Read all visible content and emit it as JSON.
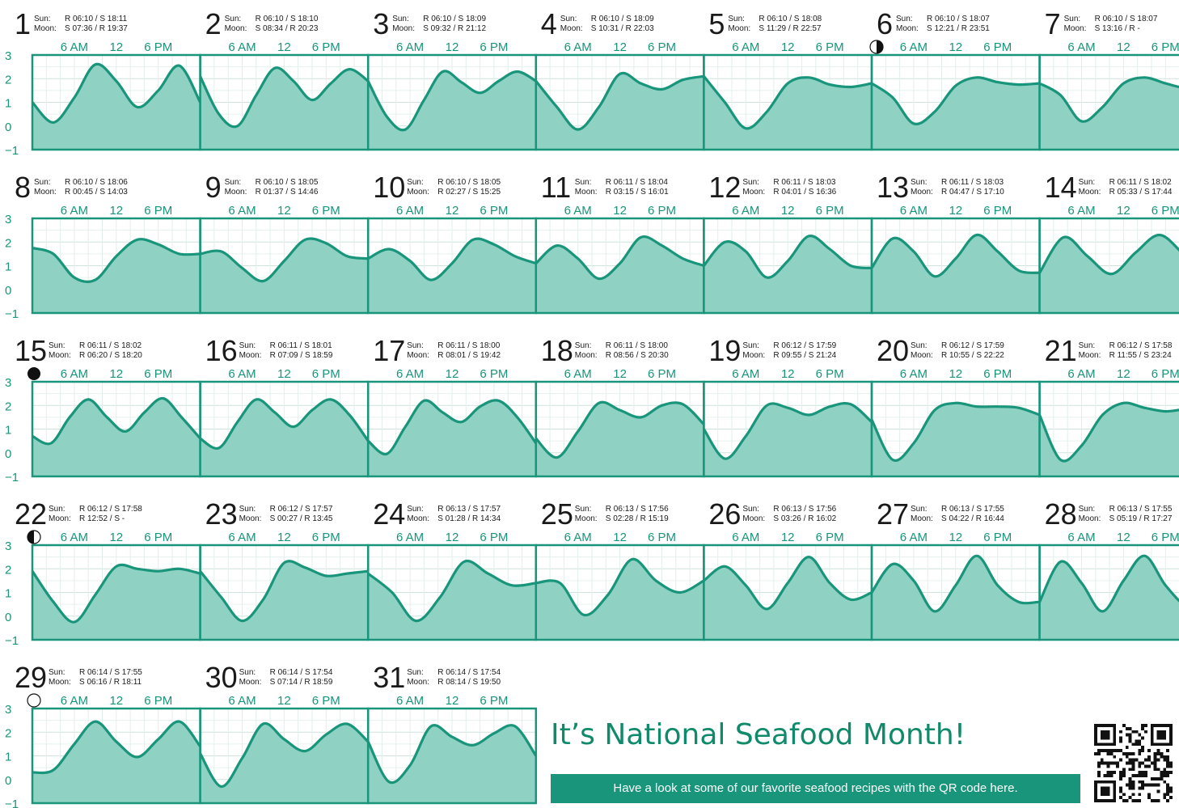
{
  "page": {
    "headline": "It’s National Seafood Month!",
    "banner_text": "Have a look at some of our favorite seafood recipes with the QR code here."
  },
  "colors": {
    "accent": "#18957a",
    "fill": "#8fd1c2",
    "text": "#1a1a1a"
  },
  "chart_data": {
    "type": "area",
    "unit_hint": "",
    "y_ticks": [
      "3",
      "2",
      "1",
      "0",
      "−1"
    ],
    "ylim": [
      -1,
      3
    ],
    "time_tick_labels": [
      "6 AM",
      "12",
      "6 PM"
    ],
    "sun_label": "Sun:",
    "moon_label": "Moon:",
    "moon_phase_icons": {
      "6": "first-quarter-moon-icon",
      "15": "full-moon-icon",
      "22": "last-quarter-moon-icon",
      "29": "new-moon-icon"
    },
    "days": [
      {
        "day": "1",
        "sun": "R 06:10 / S 18:11",
        "moon": "S 07:36 / R 19:37",
        "tide": [
          1.0,
          0.15,
          1.2,
          2.6,
          1.9,
          0.8,
          1.5,
          2.55,
          1.0
        ]
      },
      {
        "day": "2",
        "sun": "R 06:10 / S 18:10",
        "moon": "S 08:34 / R 20:23",
        "tide": [
          2.1,
          0.5,
          0.0,
          1.3,
          2.45,
          1.9,
          1.1,
          1.8,
          2.4,
          1.9
        ]
      },
      {
        "day": "3",
        "sun": "R 06:10 / S 18:09",
        "moon": "S 09:32 / R 21:12",
        "tide": [
          1.9,
          0.4,
          -0.15,
          1.1,
          2.3,
          1.85,
          1.4,
          1.9,
          2.3,
          1.9
        ]
      },
      {
        "day": "4",
        "sun": "R 06:10 / S 18:09",
        "moon": "S 10:31 / R 22:03",
        "tide": [
          1.9,
          0.8,
          -0.15,
          0.8,
          2.2,
          1.8,
          1.55,
          1.95,
          2.1
        ]
      },
      {
        "day": "5",
        "sun": "R 06:10 / S 18:08",
        "moon": "S 11:29 / R 22:57",
        "tide": [
          2.1,
          1.0,
          -0.1,
          0.6,
          1.8,
          2.05,
          1.75,
          1.65,
          1.8
        ]
      },
      {
        "day": "6",
        "sun": "R 06:10 / S 18:07",
        "moon": "S 12:21 / R 23:51",
        "tide": [
          1.8,
          1.2,
          0.1,
          0.6,
          1.7,
          2.05,
          1.85,
          1.75,
          1.8
        ]
      },
      {
        "day": "7",
        "sun": "R 06:10 / S 18:07",
        "moon": "S 13:16 / R -",
        "tide": [
          1.8,
          1.3,
          0.2,
          0.8,
          1.8,
          2.05,
          1.8,
          1.6,
          1.7
        ]
      },
      {
        "day": "8",
        "sun": "R 06:10 / S 18:06",
        "moon": "R 00:45 / S 14:03",
        "tide": [
          1.75,
          1.5,
          0.5,
          0.4,
          1.4,
          2.1,
          1.9,
          1.5,
          1.5
        ]
      },
      {
        "day": "9",
        "sun": "R 06:10 / S 18:05",
        "moon": "R 01:37 / S 14:46",
        "tide": [
          1.5,
          1.6,
          0.9,
          0.35,
          1.2,
          2.1,
          1.95,
          1.4,
          1.3
        ]
      },
      {
        "day": "10",
        "sun": "R 06:10 / S 18:05",
        "moon": "R 02:27 / S 15:25",
        "tide": [
          1.3,
          1.7,
          1.2,
          0.4,
          1.1,
          2.1,
          1.9,
          1.4,
          1.1
        ]
      },
      {
        "day": "11",
        "sun": "R 06:11 / S 18:04",
        "moon": "R 03:15 / S 16:01",
        "tide": [
          1.1,
          1.85,
          1.3,
          0.45,
          1.1,
          2.2,
          1.85,
          1.3,
          1.0
        ]
      },
      {
        "day": "12",
        "sun": "R 06:11 / S 18:03",
        "moon": "R 04:01 / S 16:36",
        "tide": [
          1.0,
          2.0,
          1.6,
          0.5,
          1.2,
          2.25,
          1.7,
          1.0,
          0.9
        ]
      },
      {
        "day": "13",
        "sun": "R 06:11 / S 18:03",
        "moon": "R 04:47 / S 17:10",
        "tide": [
          0.9,
          2.15,
          1.6,
          0.55,
          1.3,
          2.3,
          1.6,
          0.8,
          0.7
        ]
      },
      {
        "day": "14",
        "sun": "R 06:11 / S 18:02",
        "moon": "R 05:33 / S 17:44",
        "tide": [
          0.7,
          2.2,
          1.4,
          0.65,
          1.55,
          2.3,
          1.5,
          0.7
        ]
      },
      {
        "day": "15",
        "sun": "R 06:11 / S 18:02",
        "moon": "R 06:20 / S 18:20",
        "tide": [
          0.7,
          0.4,
          1.5,
          2.25,
          1.5,
          0.9,
          1.7,
          2.3,
          1.5,
          0.6
        ]
      },
      {
        "day": "16",
        "sun": "R 06:11 / S 18:01",
        "moon": "R 07:09 / S 18:59",
        "tide": [
          0.6,
          0.2,
          1.3,
          2.25,
          1.7,
          1.1,
          1.8,
          2.25,
          1.6,
          0.5
        ]
      },
      {
        "day": "17",
        "sun": "R 06:11 / S 18:00",
        "moon": "R 08:01 / S 19:42",
        "tide": [
          0.5,
          -0.05,
          1.1,
          2.2,
          1.7,
          1.3,
          1.95,
          2.2,
          1.5,
          0.4
        ]
      },
      {
        "day": "18",
        "sun": "R 06:11 / S 18:00",
        "moon": "R 08:56 / S 20:30",
        "tide": [
          0.6,
          -0.2,
          0.9,
          2.1,
          1.8,
          1.5,
          2.0,
          2.05,
          1.2
        ]
      },
      {
        "day": "19",
        "sun": "R 06:12 / S 17:59",
        "moon": "R 09:55 / S 21:24",
        "tide": [
          1.0,
          -0.25,
          0.7,
          2.0,
          1.9,
          1.6,
          1.95,
          2.05,
          1.3
        ]
      },
      {
        "day": "20",
        "sun": "R 06:12 / S 17:59",
        "moon": "R 10:55 / S 22:22",
        "tide": [
          1.4,
          -0.3,
          0.4,
          1.8,
          2.1,
          1.95,
          1.95,
          1.9,
          1.6
        ]
      },
      {
        "day": "21",
        "sun": "R 06:12 / S 17:58",
        "moon": "R 11:55 / S 23:24",
        "tide": [
          1.6,
          -0.3,
          0.3,
          1.6,
          2.1,
          1.9,
          1.75,
          1.85,
          1.9
        ]
      },
      {
        "day": "22",
        "sun": "R 06:12 / S 17:58",
        "moon": "R 12:52 / S -",
        "tide": [
          1.9,
          0.6,
          -0.25,
          0.9,
          2.1,
          2.0,
          1.9,
          2.0,
          1.8
        ]
      },
      {
        "day": "23",
        "sun": "R 06:12 / S 17:57",
        "moon": "S 00:27 / R 13:45",
        "tide": [
          1.9,
          0.8,
          -0.2,
          0.7,
          2.25,
          2.05,
          1.7,
          1.8,
          1.9
        ]
      },
      {
        "day": "24",
        "sun": "R 06:13 / S 17:57",
        "moon": "S 01:28 / R 14:34",
        "tide": [
          1.8,
          1.0,
          -0.2,
          0.8,
          2.3,
          1.8,
          1.3,
          1.4
        ]
      },
      {
        "day": "25",
        "sun": "R 06:13 / S 17:56",
        "moon": "S 02:28 / R 15:19",
        "tide": [
          1.4,
          1.4,
          0.05,
          0.9,
          2.4,
          1.5,
          1.0,
          1.5
        ]
      },
      {
        "day": "26",
        "sun": "R 06:13 / S 17:56",
        "moon": "S 03:26 / R 16:02",
        "tide": [
          1.5,
          2.1,
          1.3,
          0.3,
          1.4,
          2.5,
          1.4,
          0.7,
          1.0
        ]
      },
      {
        "day": "27",
        "sun": "R 06:13 / S 17:55",
        "moon": "S 04:22 / R 16:44",
        "tide": [
          1.0,
          2.2,
          1.5,
          0.2,
          1.3,
          2.55,
          1.3,
          0.6,
          0.6
        ]
      },
      {
        "day": "28",
        "sun": "R 06:13 / S 17:55",
        "moon": "S 05:19 / R 17:27",
        "tide": [
          0.6,
          2.3,
          1.4,
          0.2,
          1.5,
          2.55,
          1.3,
          0.4,
          0.2
        ]
      },
      {
        "day": "29",
        "sun": "R 06:14 / S 17:55",
        "moon": "S 06:16 / R 18:11",
        "tide": [
          0.3,
          0.4,
          1.5,
          2.45,
          1.6,
          0.95,
          1.7,
          2.45,
          1.4
        ]
      },
      {
        "day": "30",
        "sun": "R 06:14 / S 17:54",
        "moon": "S 07:14 / R 18:59",
        "tide": [
          1.1,
          -0.3,
          0.9,
          2.35,
          1.7,
          1.2,
          1.9,
          2.35,
          1.6
        ]
      },
      {
        "day": "31",
        "sun": "R 06:14 / S 17:54",
        "moon": "R 08:14 / S 19:50",
        "tide": [
          1.6,
          -0.1,
          0.6,
          2.25,
          1.8,
          1.45,
          1.95,
          2.25,
          1.0
        ]
      }
    ]
  }
}
